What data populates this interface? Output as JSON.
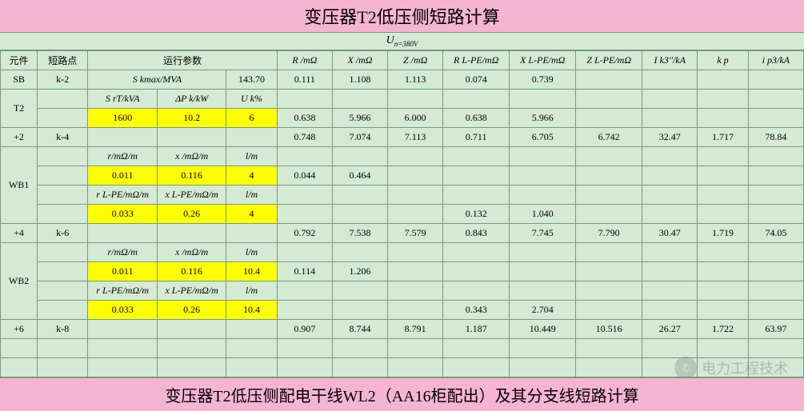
{
  "title": "变压器T2低压侧短路计算",
  "subtitle_prefix": "U",
  "subtitle_value": "n=380V",
  "footer": "变压器T2低压侧配电干线WL2（AA16柜配出）及其分支线短路计算",
  "watermark": "电力工程技术",
  "headers": {
    "component": "元件",
    "short_pt": "短路点",
    "run_params": "运行参数",
    "R": "R /mΩ",
    "X": "X /mΩ",
    "Z": "Z /mΩ",
    "RLPE": "R L-PE/mΩ",
    "XLPE": "X L-PE/mΩ",
    "ZLPE": "Z L-PE/mΩ",
    "Ik3": "I k3''/kA",
    "kp": "k p",
    "ip3": "i p3/kA"
  },
  "rows": {
    "sb": {
      "comp": "SB",
      "pt": "k-2",
      "p1": "S kmax/MVA",
      "p3": "143.70",
      "R": "0.111",
      "X": "1.108",
      "Z": "1.113",
      "RL": "0.074",
      "XL": "0.739"
    },
    "t2a": {
      "comp": "T2",
      "p1": "S rT/kVA",
      "p2": "ΔP k/kW",
      "p3": "U k%"
    },
    "t2b": {
      "p1": "1600",
      "p2": "10.2",
      "p3": "6",
      "R": "0.638",
      "X": "5.966",
      "Z": "6.000",
      "RL": "0.638",
      "XL": "5.966"
    },
    "p2": {
      "comp": "+2",
      "pt": "k-4",
      "R": "0.748",
      "X": "7.074",
      "Z": "7.113",
      "RL": "0.711",
      "XL": "6.705",
      "ZL": "6.742",
      "Ik": "32.47",
      "kp": "1.717",
      "ip": "78.84"
    },
    "wb1a": {
      "comp": "WB1",
      "p1": "r/mΩ/m",
      "p2": "x /mΩ/m",
      "p3": "l/m"
    },
    "wb1b": {
      "p1": "0.011",
      "p2": "0.116",
      "p3": "4",
      "R": "0.044",
      "X": "0.464"
    },
    "wb1c": {
      "p1": "r L-PE/mΩ/m",
      "p2": "x L-PE/mΩ/m",
      "p3": "l/m"
    },
    "wb1d": {
      "p1": "0.033",
      "p2": "0.26",
      "p3": "4",
      "RL": "0.132",
      "XL": "1.040"
    },
    "p4": {
      "comp": "+4",
      "pt": "k-6",
      "R": "0.792",
      "X": "7.538",
      "Z": "7.579",
      "RL": "0.843",
      "XL": "7.745",
      "ZL": "7.790",
      "Ik": "30.47",
      "kp": "1.719",
      "ip": "74.05"
    },
    "wb2a": {
      "comp": "WB2",
      "p1": "r/mΩ/m",
      "p2": "x /mΩ/m",
      "p3": "l/m"
    },
    "wb2b": {
      "p1": "0.011",
      "p2": "0.116",
      "p3": "10.4",
      "R": "0.114",
      "X": "1.206"
    },
    "wb2c": {
      "p1": "r L-PE/mΩ/m",
      "p2": "x L-PE/mΩ/m",
      "p3": "l/m"
    },
    "wb2d": {
      "p1": "0.033",
      "p2": "0.26",
      "p3": "10.4",
      "RL": "0.343",
      "XL": "2.704"
    },
    "p6": {
      "comp": "+6",
      "pt": "k-8",
      "R": "0.907",
      "X": "8.744",
      "Z": "8.791",
      "RL": "1.187",
      "XL": "10.449",
      "ZL": "10.516",
      "Ik": "26.27",
      "kp": "1.722",
      "ip": "63.97"
    }
  },
  "colors": {
    "bg": "#d4ead4",
    "yellow": "#ffff00",
    "pink": "#f5b5d0",
    "border": "#7a9a7a"
  }
}
